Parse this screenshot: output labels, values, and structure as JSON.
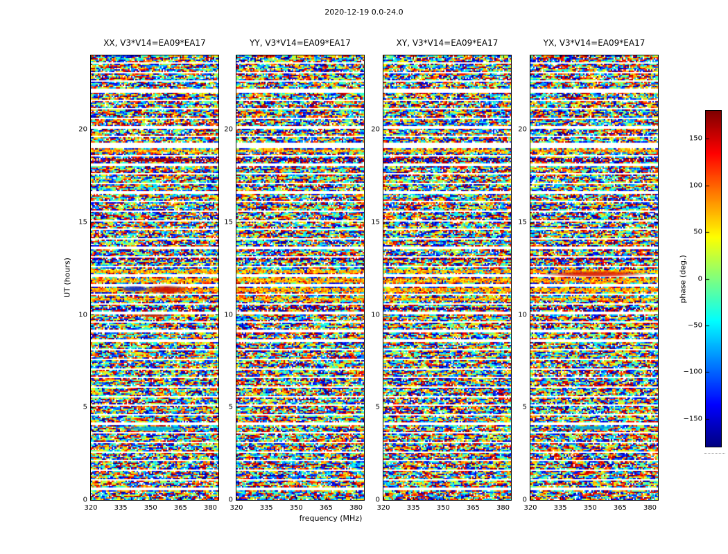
{
  "chart_data": {
    "type": "heatmap",
    "title": "2020-12-19 0.0-24.0",
    "date": "2020-12-19",
    "time_range_hours": [
      0.0,
      24.0
    ],
    "baseline": "V3*V14=EA09*EA17",
    "polarizations": [
      "XX",
      "YY",
      "XY",
      "YX"
    ],
    "panels": [
      {
        "title": "XX, V3*V14=EA09*EA17",
        "pol": "XX",
        "seed": 101
      },
      {
        "title": "YY, V3*V14=EA09*EA17",
        "pol": "YY",
        "seed": 202
      },
      {
        "title": "XY, V3*V14=EA09*EA17",
        "pol": "XY",
        "seed": 303
      },
      {
        "title": "YX, V3*V14=EA09*EA17",
        "pol": "YX",
        "seed": 404
      }
    ],
    "xlabel": "frequency (MHz)",
    "ylabel": "UT (hours)",
    "xlim": [
      320,
      384
    ],
    "ylim": [
      0,
      24
    ],
    "xticks": [
      320,
      335,
      350,
      365,
      380
    ],
    "yticks": [
      0,
      5,
      10,
      15,
      20
    ],
    "colorbar": {
      "label": "phase (deg.)",
      "min": -180,
      "max": 180,
      "ticks": [
        150,
        100,
        50,
        0,
        -50,
        -100,
        -150
      ],
      "colormap": "jet"
    },
    "content": "random interferometric visibility phase noise vs frequency and time; white horizontal rows are flagged/no-data scan gaps",
    "gaps": [
      [
        0.6,
        0.08
      ],
      [
        1.1,
        0.08
      ],
      [
        1.6,
        0.1
      ],
      [
        2.1,
        0.08
      ],
      [
        2.6,
        0.08
      ],
      [
        3.1,
        0.1
      ],
      [
        3.6,
        0.08
      ],
      [
        4.1,
        0.12
      ],
      [
        4.6,
        0.08
      ],
      [
        5.1,
        0.1
      ],
      [
        5.6,
        0.08
      ],
      [
        6.1,
        0.1
      ],
      [
        6.6,
        0.08
      ],
      [
        7.1,
        0.08
      ],
      [
        7.6,
        0.1
      ],
      [
        8.1,
        0.08
      ],
      [
        8.6,
        0.1
      ],
      [
        9.1,
        0.14
      ],
      [
        9.6,
        0.08
      ],
      [
        10.1,
        0.1
      ],
      [
        10.6,
        0.08
      ],
      [
        11.1,
        0.1
      ],
      [
        11.6,
        0.18
      ],
      [
        12.1,
        0.1
      ],
      [
        12.6,
        0.1
      ],
      [
        13.1,
        0.08
      ],
      [
        13.6,
        0.1
      ],
      [
        14.1,
        0.08
      ],
      [
        14.6,
        0.1
      ],
      [
        15.1,
        0.08
      ],
      [
        15.6,
        0.1
      ],
      [
        16.1,
        0.08
      ],
      [
        16.6,
        0.1
      ],
      [
        17.1,
        0.08
      ],
      [
        17.6,
        0.1
      ],
      [
        18.1,
        0.2
      ],
      [
        18.6,
        0.1
      ],
      [
        19.15,
        0.35
      ],
      [
        19.6,
        0.08
      ],
      [
        20.1,
        0.1
      ],
      [
        20.6,
        0.08
      ],
      [
        21.1,
        0.1
      ],
      [
        21.6,
        0.08
      ],
      [
        22.1,
        0.25
      ],
      [
        22.6,
        0.1
      ],
      [
        23.1,
        0.08
      ],
      [
        23.6,
        0.1
      ]
    ],
    "yellow_bands": [
      [
        10.85,
        0.2
      ],
      [
        11.35,
        0.25
      ],
      [
        11.85,
        0.2
      ],
      [
        12.3,
        0.15
      ],
      [
        18.85,
        0.1
      ]
    ],
    "dark_bands": [
      [
        18.35,
        0.25
      ],
      [
        13.0,
        0.2
      ],
      [
        10.35,
        0.15
      ]
    ],
    "features": [
      {
        "panel": 0,
        "t": 11.35,
        "f": 358,
        "fw": 24,
        "th": 0.5,
        "color": "#cc1100"
      },
      {
        "panel": 0,
        "t": 11.4,
        "f": 342,
        "fw": 16,
        "th": 0.35,
        "color": "#1133cc"
      },
      {
        "panel": 0,
        "t": 3.85,
        "f": 352,
        "fw": 34,
        "th": 0.3,
        "color": "#00bbdd"
      },
      {
        "panel": 0,
        "t": 9.95,
        "f": 352,
        "fw": 18,
        "th": 0.18,
        "color": "#cc2200"
      },
      {
        "panel": 0,
        "t": 18.35,
        "f": 352,
        "fw": 64,
        "th": 0.2,
        "color": "#aa0000"
      },
      {
        "panel": 3,
        "t": 12.2,
        "f": 352,
        "fw": 56,
        "th": 0.35,
        "color": "#dd2200"
      },
      {
        "panel": 3,
        "t": 3.9,
        "f": 350,
        "fw": 28,
        "th": 0.25,
        "color": "#00aadd"
      }
    ]
  }
}
